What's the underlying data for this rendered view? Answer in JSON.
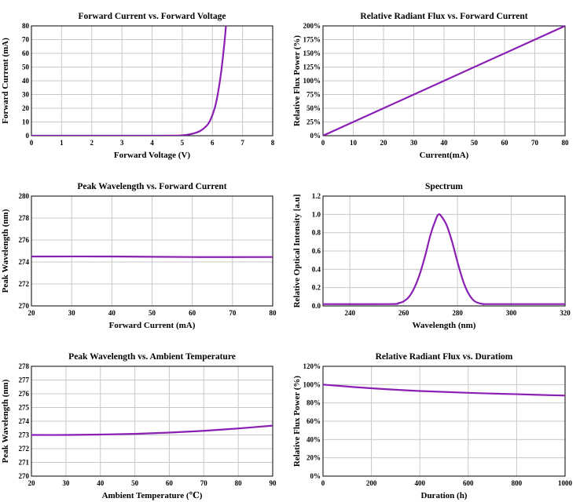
{
  "chart_data": [
    {
      "id": "iv",
      "type": "line",
      "title": "Forward Current vs. Forward Voltage",
      "xlabel": "Forward Voltage (V)",
      "ylabel": "Forward Current (mA)",
      "xlim": [
        0,
        8
      ],
      "ylim": [
        0,
        80
      ],
      "xticks": [
        0,
        1,
        2,
        3,
        4,
        5,
        6,
        7,
        8
      ],
      "yticks": [
        0,
        10,
        20,
        30,
        40,
        50,
        60,
        70,
        80
      ],
      "grid": true,
      "series": [
        {
          "color": "#8a1fb4",
          "x": [
            0,
            1,
            2,
            3,
            4,
            4.8,
            5.0,
            5.2,
            5.4,
            5.6,
            5.8,
            5.9,
            6.0,
            6.1,
            6.2,
            6.3,
            6.4,
            6.45
          ],
          "y": [
            0,
            0,
            0,
            0,
            0,
            0.1,
            0.3,
            0.8,
            1.8,
            3.5,
            7.0,
            10.0,
            15.0,
            22.0,
            33.0,
            48.0,
            68.0,
            80.0
          ]
        }
      ]
    },
    {
      "id": "flux-current",
      "type": "line",
      "title": "Relative Radiant Flux vs. Forward Current",
      "xlabel": "Current(mA)",
      "ylabel": "Relative Flux Power (%)",
      "xlim": [
        0,
        80
      ],
      "ylim": [
        0,
        200
      ],
      "xticks": [
        0,
        10,
        20,
        30,
        40,
        50,
        60,
        70,
        80
      ],
      "yticks": [
        0,
        25,
        50,
        75,
        100,
        125,
        150,
        175,
        200
      ],
      "ytick_suffix": "%",
      "grid": true,
      "series": [
        {
          "color": "#8a1fb4",
          "x": [
            0,
            80
          ],
          "y": [
            0,
            200
          ]
        }
      ]
    },
    {
      "id": "wl-current",
      "type": "line",
      "title": "Peak Wavelength vs. Forward Current",
      "xlabel": "Forward Current (mA)",
      "ylabel": "Peak Wavelength (nm)",
      "xlim": [
        20,
        80
      ],
      "ylim": [
        270,
        280
      ],
      "xticks": [
        20,
        30,
        40,
        50,
        60,
        70,
        80
      ],
      "yticks": [
        270,
        272,
        274,
        276,
        278,
        280
      ],
      "grid": true,
      "series": [
        {
          "color": "#8a1fb4",
          "x": [
            20,
            40,
            60,
            80
          ],
          "y": [
            274.5,
            274.5,
            274.45,
            274.45
          ]
        }
      ]
    },
    {
      "id": "spectrum",
      "type": "line",
      "title": "Spectrum",
      "xlabel": "Wavelength (nm)",
      "ylabel": "Relative Optical Intensity [a.u]",
      "xlim": [
        230,
        320
      ],
      "ylim": [
        0,
        1.2
      ],
      "xticks": [
        240,
        260,
        280,
        300,
        320
      ],
      "yticks": [
        0.0,
        0.2,
        0.4,
        0.6,
        0.8,
        1.0,
        1.2
      ],
      "ytick_format": "fixed1",
      "grid": true,
      "series": [
        {
          "color": "#8a1fb4",
          "x": [
            230,
            255,
            258,
            260,
            262,
            264,
            266,
            268,
            270,
            272,
            273,
            274,
            276,
            278,
            280,
            282,
            284,
            286,
            288,
            290,
            292,
            320
          ],
          "y": [
            0.02,
            0.02,
            0.03,
            0.05,
            0.1,
            0.2,
            0.35,
            0.55,
            0.78,
            0.95,
            1.0,
            0.98,
            0.88,
            0.7,
            0.48,
            0.28,
            0.14,
            0.06,
            0.03,
            0.02,
            0.02,
            0.02
          ]
        }
      ]
    },
    {
      "id": "wl-temp",
      "type": "line",
      "title": "Peak Wavelength vs. Ambient Temperature",
      "xlabel": "Ambient Temperature (℃)",
      "ylabel": "Peak Wavelength (nm)",
      "xlim": [
        20,
        90
      ],
      "ylim": [
        270,
        278
      ],
      "xticks": [
        20,
        30,
        40,
        50,
        60,
        70,
        80,
        90
      ],
      "yticks": [
        270,
        271,
        272,
        273,
        274,
        275,
        276,
        277,
        278
      ],
      "grid": true,
      "series": [
        {
          "color": "#8a1fb4",
          "x": [
            20,
            30,
            40,
            50,
            60,
            70,
            80,
            90
          ],
          "y": [
            273.0,
            273.0,
            273.03,
            273.08,
            273.17,
            273.3,
            273.47,
            273.68
          ]
        }
      ]
    },
    {
      "id": "flux-duration",
      "type": "line",
      "title": "Relative Radiant Flux vs. Duratiom",
      "xlabel": "Duration (h)",
      "ylabel": "Relative Flux Power (%)",
      "xlim": [
        0,
        1000
      ],
      "ylim": [
        0,
        120
      ],
      "xticks": [
        0,
        200,
        400,
        600,
        800,
        1000
      ],
      "yticks": [
        0,
        20,
        40,
        60,
        80,
        100,
        120
      ],
      "ytick_suffix": "%",
      "grid": true,
      "series": [
        {
          "color": "#8a1fb4",
          "x": [
            0,
            200,
            400,
            600,
            800,
            1000
          ],
          "y": [
            100,
            96,
            93,
            91,
            89.5,
            88
          ]
        }
      ]
    }
  ]
}
